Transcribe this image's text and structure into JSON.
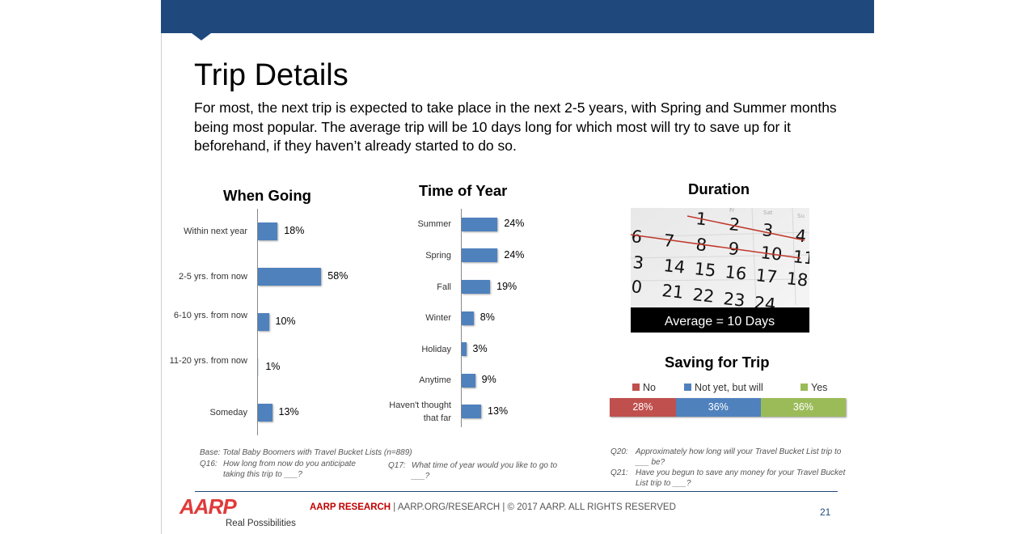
{
  "slide": {
    "title": "Trip Details",
    "subtitle": "For most, the next trip is expected to take place in the next 2-5 years, with Spring and Summer months being most popular.  The average trip will be 10 days long for which most will try to save up for it beforehand, if they haven’t already started to do so."
  },
  "colors": {
    "bar": "#4f81bd",
    "no": "#c0504d",
    "not_yet": "#4f81bd",
    "yes": "#9bbb59",
    "header": "#1f497d",
    "logo": "#e03a3a"
  },
  "chart_data": [
    {
      "type": "bar",
      "orientation": "horizontal",
      "title": "When Going",
      "categories": [
        "Within next year",
        "2-5 yrs. from now",
        "6-10 yrs. from now",
        "11-20 yrs. from now",
        "Someday"
      ],
      "values": [
        18,
        58,
        10,
        1,
        13
      ],
      "labels": [
        "18%",
        "58%",
        "10%",
        "1%",
        "13%"
      ],
      "xlim": [
        0,
        100
      ]
    },
    {
      "type": "bar",
      "orientation": "horizontal",
      "title": "Time of Year",
      "categories": [
        "Summer",
        "Spring",
        "Fall",
        "Winter",
        "Holiday",
        "Anytime",
        "Haven't thought that far"
      ],
      "values": [
        24,
        24,
        19,
        8,
        3,
        9,
        13
      ],
      "labels": [
        "24%",
        "24%",
        "19%",
        "8%",
        "3%",
        "9%",
        "13%"
      ],
      "xlim": [
        0,
        100
      ]
    },
    {
      "type": "bar",
      "orientation": "horizontal",
      "stacked": true,
      "title": "Saving for Trip",
      "series": [
        {
          "name": "No",
          "value": 28,
          "label": "28%"
        },
        {
          "name": "Not yet, but will",
          "value": 36,
          "label": "36%"
        },
        {
          "name": "Yes",
          "value": 36,
          "label": "36%"
        }
      ],
      "legend": "top"
    }
  ],
  "duration": {
    "title": "Duration",
    "caption": "Average = 10 Days",
    "calendar": {
      "day_headers": [
        "Sat",
        "Su",
        "Fr"
      ],
      "rows": [
        [
          "1",
          "2",
          "3",
          "4"
        ],
        [
          "6",
          "7",
          "8",
          "9",
          "10",
          "11"
        ],
        [
          "3",
          "14",
          "15",
          "16",
          "17",
          "18"
        ],
        [
          "0",
          "21",
          "22",
          "23",
          "24"
        ]
      ]
    }
  },
  "footnotes": {
    "base": "Base: Total Baby Boomers with Travel Bucket Lists (n=889)",
    "q16_num": "Q16:",
    "q16": "How long from now do you anticipate taking this trip to ___?",
    "q17_num": "Q17:",
    "q17": "What time of year would you like to go to ___?",
    "q20_num": "Q20:",
    "q20": "Approximately how long will your Travel Bucket List trip to ___ be?",
    "q21_num": "Q21:",
    "q21": "Have you begun to save any money for your Travel Bucket List trip to ___?"
  },
  "footer": {
    "logo": "AARP",
    "tagline": "Real Possibilities",
    "research": "AARP RESEARCH",
    "text": " | AARP.ORG/RESEARCH  | © 2017 AARP. ALL RIGHTS RESERVED",
    "page": "21"
  }
}
